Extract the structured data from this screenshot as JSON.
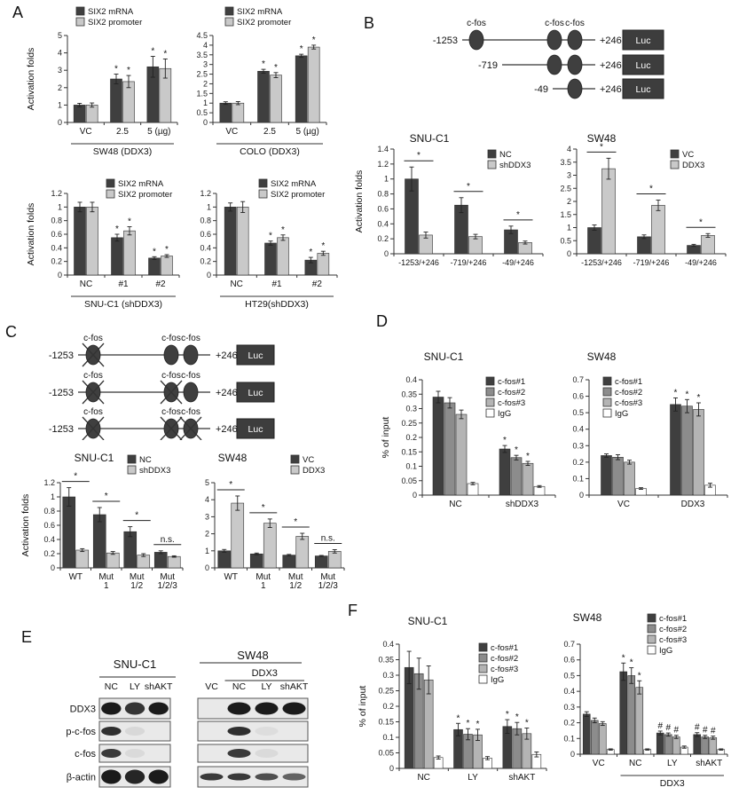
{
  "panel_labels": {
    "a": "A",
    "b": "B",
    "c": "C",
    "d": "D",
    "e": "E",
    "f": "F"
  },
  "colors": {
    "dark": "#3f3f3f",
    "light": "#c9c9c9",
    "mid": "#8c8c8c",
    "lighter": "#b4b4b4",
    "white": "#ffffff"
  },
  "chart_data": {
    "a1": {
      "type": "bar",
      "title": "",
      "ylabel": "Activation folds",
      "ylim": [
        0,
        5
      ],
      "ystep": 1,
      "categories": [
        "VC",
        "2.5",
        "5 (µg)"
      ],
      "series": [
        {
          "name": "SIX2 mRNA",
          "color": "#3f3f3f",
          "values": [
            1.0,
            2.5,
            3.2
          ],
          "errors": [
            0.1,
            0.28,
            0.6
          ]
        },
        {
          "name": "SIX2 promoter",
          "color": "#c9c9c9",
          "values": [
            1.0,
            2.35,
            3.1
          ],
          "errors": [
            0.12,
            0.35,
            0.55
          ]
        }
      ],
      "bar_marks": [
        {
          "c": 1,
          "s": 0,
          "t": "*"
        },
        {
          "c": 1,
          "s": 1,
          "t": "*"
        },
        {
          "c": 2,
          "s": 0,
          "t": "*"
        },
        {
          "c": 2,
          "s": 1,
          "t": "*"
        }
      ],
      "xgroup": {
        "label": "SW48 (DDX3)",
        "span": [
          0,
          2
        ]
      }
    },
    "a2": {
      "type": "bar",
      "title": "",
      "ylim": [
        0,
        4.5
      ],
      "ystep": 0.5,
      "categories": [
        "VC",
        "2.5",
        "5 (µg)"
      ],
      "series": [
        {
          "name": "SIX2 mRNA",
          "color": "#3f3f3f",
          "values": [
            1.0,
            2.65,
            3.45
          ],
          "errors": [
            0.07,
            0.1,
            0.08
          ]
        },
        {
          "name": "SIX2 promoter",
          "color": "#c9c9c9",
          "values": [
            1.0,
            2.45,
            3.9
          ],
          "errors": [
            0.08,
            0.13,
            0.1
          ]
        }
      ],
      "bar_marks": [
        {
          "c": 1,
          "s": 0,
          "t": "*"
        },
        {
          "c": 1,
          "s": 1,
          "t": "*"
        },
        {
          "c": 2,
          "s": 0,
          "t": "*"
        },
        {
          "c": 2,
          "s": 1,
          "t": "*"
        }
      ],
      "xgroup": {
        "label": "COLO (DDX3)",
        "span": [
          0,
          2
        ]
      }
    },
    "a3": {
      "type": "bar",
      "title": "",
      "ylabel": "Activation folds",
      "ylim": [
        0,
        1.2
      ],
      "ystep": 0.2,
      "categories": [
        "NC",
        "#1",
        "#2"
      ],
      "series": [
        {
          "name": "SIX2 mRNA",
          "color": "#3f3f3f",
          "values": [
            1.0,
            0.55,
            0.25
          ],
          "errors": [
            0.07,
            0.05,
            0.02
          ]
        },
        {
          "name": "SIX2 promoter",
          "color": "#c9c9c9",
          "values": [
            1.0,
            0.65,
            0.28
          ],
          "errors": [
            0.07,
            0.06,
            0.02
          ]
        }
      ],
      "bar_marks": [
        {
          "c": 1,
          "s": 0,
          "t": "*"
        },
        {
          "c": 1,
          "s": 1,
          "t": "*"
        },
        {
          "c": 2,
          "s": 0,
          "t": "*"
        },
        {
          "c": 2,
          "s": 1,
          "t": "*"
        }
      ],
      "xgroup": {
        "label": "SNU-C1 (shDDX3)",
        "span": [
          0,
          2
        ]
      }
    },
    "a4": {
      "type": "bar",
      "title": "",
      "ylim": [
        0,
        1.2
      ],
      "ystep": 0.2,
      "categories": [
        "NC",
        "#1",
        "#2"
      ],
      "series": [
        {
          "name": "SIX2 mRNA",
          "color": "#3f3f3f",
          "values": [
            1.0,
            0.47,
            0.22
          ],
          "errors": [
            0.06,
            0.03,
            0.04
          ]
        },
        {
          "name": "SIX2 promoter",
          "color": "#c9c9c9",
          "values": [
            1.0,
            0.55,
            0.32
          ],
          "errors": [
            0.08,
            0.04,
            0.03
          ]
        }
      ],
      "bar_marks": [
        {
          "c": 1,
          "s": 0,
          "t": "*"
        },
        {
          "c": 1,
          "s": 1,
          "t": "*"
        },
        {
          "c": 2,
          "s": 0,
          "t": "*"
        },
        {
          "c": 2,
          "s": 1,
          "t": "*"
        }
      ],
      "xgroup": {
        "label": "HT29(shDDX3)",
        "span": [
          0,
          2
        ]
      }
    },
    "b1": {
      "type": "bar",
      "title": "SNU-C1",
      "ylabel": "Activation folds",
      "ylim": [
        0,
        1.4
      ],
      "ystep": 0.2,
      "categories": [
        "-1253/+246",
        "-719/+246",
        "-49/+246"
      ],
      "series": [
        {
          "name": "NC",
          "color": "#3f3f3f",
          "values": [
            1.0,
            0.65,
            0.32
          ],
          "errors": [
            0.16,
            0.1,
            0.05
          ]
        },
        {
          "name": "shDDX3",
          "color": "#c9c9c9",
          "values": [
            0.25,
            0.23,
            0.15
          ],
          "errors": [
            0.04,
            0.03,
            0.02
          ]
        }
      ],
      "cat_marks": [
        {
          "c": 0,
          "t": "*"
        },
        {
          "c": 1,
          "t": "*"
        },
        {
          "c": 2,
          "t": "*"
        }
      ]
    },
    "b2": {
      "type": "bar",
      "title": "SW48",
      "ylim": [
        0,
        4
      ],
      "ystep": 0.5,
      "categories": [
        "-1253/+246",
        "-719/+246",
        "-49/+246"
      ],
      "series": [
        {
          "name": "VC",
          "color": "#3f3f3f",
          "values": [
            1.0,
            0.65,
            0.32
          ],
          "errors": [
            0.1,
            0.07,
            0.04
          ]
        },
        {
          "name": "DDX3",
          "color": "#c9c9c9",
          "values": [
            3.25,
            1.85,
            0.7
          ],
          "errors": [
            0.4,
            0.2,
            0.07
          ]
        }
      ],
      "cat_marks": [
        {
          "c": 0,
          "t": "*"
        },
        {
          "c": 1,
          "t": "*"
        },
        {
          "c": 2,
          "t": "*"
        }
      ]
    },
    "c1": {
      "type": "bar",
      "title": "SNU-C1",
      "ylabel": "Activation folds",
      "ylim": [
        0,
        1.2
      ],
      "ystep": 0.2,
      "categories": [
        "WT",
        "Mut\n1",
        "Mut\n1/2",
        "Mut\n1/2/3"
      ],
      "series": [
        {
          "name": "NC",
          "color": "#3f3f3f",
          "values": [
            1.0,
            0.75,
            0.51,
            0.22
          ],
          "errors": [
            0.13,
            0.1,
            0.07,
            0.02
          ]
        },
        {
          "name": "shDDX3",
          "color": "#c9c9c9",
          "values": [
            0.25,
            0.21,
            0.18,
            0.16
          ],
          "errors": [
            0.02,
            0.02,
            0.02,
            0.01
          ]
        }
      ],
      "cat_marks": [
        {
          "c": 0,
          "t": "*"
        },
        {
          "c": 1,
          "t": "*"
        },
        {
          "c": 2,
          "t": "*"
        },
        {
          "c": 3,
          "t": "n.s."
        }
      ]
    },
    "c2": {
      "type": "bar",
      "title": "SW48",
      "ylim": [
        0,
        5
      ],
      "ystep": 1,
      "categories": [
        "WT",
        "Mut\n1",
        "Mut\n1/2",
        "Mut\n1/2/3"
      ],
      "series": [
        {
          "name": "VC",
          "color": "#3f3f3f",
          "values": [
            1.0,
            0.82,
            0.75,
            0.7
          ],
          "errors": [
            0.08,
            0.05,
            0.04,
            0.03
          ]
        },
        {
          "name": "DDX3",
          "color": "#c9c9c9",
          "values": [
            3.8,
            2.62,
            1.85,
            0.97
          ],
          "errors": [
            0.42,
            0.25,
            0.18,
            0.1
          ]
        }
      ],
      "cat_marks": [
        {
          "c": 0,
          "t": "*"
        },
        {
          "c": 1,
          "t": "*"
        },
        {
          "c": 2,
          "t": "*"
        },
        {
          "c": 3,
          "t": "n.s."
        }
      ]
    },
    "d1": {
      "type": "bar",
      "title": "SNU-C1",
      "ylabel": "% of input",
      "ylim": [
        0,
        0.4
      ],
      "ystep": 0.05,
      "categories": [
        "NC",
        "shDDX3"
      ],
      "series": [
        {
          "name": "c-fos#1",
          "color": "#3f3f3f",
          "values": [
            0.34,
            0.16
          ],
          "errors": [
            0.02,
            0.012
          ]
        },
        {
          "name": "c-fos#2",
          "color": "#8c8c8c",
          "values": [
            0.32,
            0.13
          ],
          "errors": [
            0.018,
            0.008
          ]
        },
        {
          "name": "c-fos#3",
          "color": "#b4b4b4",
          "values": [
            0.28,
            0.11
          ],
          "errors": [
            0.015,
            0.007
          ]
        },
        {
          "name": "IgG",
          "color": "#ffffff",
          "values": [
            0.04,
            0.03
          ],
          "errors": [
            0.004,
            0.003
          ]
        }
      ],
      "bar_marks": [
        {
          "c": 1,
          "s": 0,
          "t": "*"
        },
        {
          "c": 1,
          "s": 1,
          "t": "*"
        },
        {
          "c": 1,
          "s": 2,
          "t": "*"
        }
      ]
    },
    "d2": {
      "type": "bar",
      "title": "SW48",
      "ylim": [
        0,
        0.7
      ],
      "ystep": 0.1,
      "categories": [
        "VC",
        "DDX3"
      ],
      "series": [
        {
          "name": "c-fos#1",
          "color": "#3f3f3f",
          "values": [
            0.24,
            0.55
          ],
          "errors": [
            0.01,
            0.04
          ]
        },
        {
          "name": "c-fos#2",
          "color": "#8c8c8c",
          "values": [
            0.23,
            0.54
          ],
          "errors": [
            0.015,
            0.04
          ]
        },
        {
          "name": "c-fos#3",
          "color": "#b4b4b4",
          "values": [
            0.2,
            0.52
          ],
          "errors": [
            0.012,
            0.04
          ]
        },
        {
          "name": "IgG",
          "color": "#ffffff",
          "values": [
            0.04,
            0.06
          ],
          "errors": [
            0.005,
            0.012
          ]
        }
      ],
      "bar_marks": [
        {
          "c": 1,
          "s": 0,
          "t": "*"
        },
        {
          "c": 1,
          "s": 1,
          "t": "*"
        },
        {
          "c": 1,
          "s": 2,
          "t": "*"
        }
      ]
    },
    "f1": {
      "type": "bar",
      "title": "SNU-C1",
      "ylabel": "% of input",
      "ylim": [
        0,
        0.4
      ],
      "ystep": 0.05,
      "categories": [
        "NC",
        "LY",
        "shAKT"
      ],
      "series": [
        {
          "name": "c-fos#1",
          "color": "#3f3f3f",
          "values": [
            0.325,
            0.125,
            0.135
          ],
          "errors": [
            0.052,
            0.02,
            0.022
          ]
        },
        {
          "name": "c-fos#2",
          "color": "#8c8c8c",
          "values": [
            0.305,
            0.11,
            0.128
          ],
          "errors": [
            0.05,
            0.018,
            0.02
          ]
        },
        {
          "name": "c-fos#3",
          "color": "#b4b4b4",
          "values": [
            0.285,
            0.108,
            0.112
          ],
          "errors": [
            0.045,
            0.018,
            0.018
          ]
        },
        {
          "name": "IgG",
          "color": "#ffffff",
          "values": [
            0.035,
            0.033,
            0.045
          ],
          "errors": [
            0.005,
            0.005,
            0.008
          ]
        }
      ],
      "bar_marks": [
        {
          "c": 1,
          "s": 0,
          "t": "*"
        },
        {
          "c": 1,
          "s": 1,
          "t": "*"
        },
        {
          "c": 1,
          "s": 2,
          "t": "*"
        },
        {
          "c": 2,
          "s": 0,
          "t": "*"
        },
        {
          "c": 2,
          "s": 1,
          "t": "*"
        },
        {
          "c": 2,
          "s": 2,
          "t": "*"
        }
      ]
    },
    "f2": {
      "type": "bar",
      "title": "SW48",
      "ylim": [
        0,
        0.7
      ],
      "ystep": 0.1,
      "categories": [
        "VC",
        "NC",
        "LY",
        "shAKT"
      ],
      "series": [
        {
          "name": "c-fos#1",
          "color": "#3f3f3f",
          "values": [
            0.255,
            0.525,
            0.135,
            0.125
          ],
          "errors": [
            0.015,
            0.055,
            0.012,
            0.012
          ]
        },
        {
          "name": "c-fos#2",
          "color": "#8c8c8c",
          "values": [
            0.215,
            0.5,
            0.125,
            0.11
          ],
          "errors": [
            0.015,
            0.05,
            0.01,
            0.01
          ]
        },
        {
          "name": "c-fos#3",
          "color": "#b4b4b4",
          "values": [
            0.195,
            0.425,
            0.11,
            0.105
          ],
          "errors": [
            0.012,
            0.042,
            0.01,
            0.01
          ]
        },
        {
          "name": "IgG",
          "color": "#ffffff",
          "values": [
            0.03,
            0.03,
            0.045,
            0.03
          ],
          "errors": [
            0.004,
            0.004,
            0.007,
            0.004
          ]
        }
      ],
      "bar_marks": [
        {
          "c": 1,
          "s": 0,
          "t": "*"
        },
        {
          "c": 1,
          "s": 1,
          "t": "*"
        },
        {
          "c": 1,
          "s": 2,
          "t": "*"
        },
        {
          "c": 2,
          "s": 0,
          "t": "#"
        },
        {
          "c": 2,
          "s": 1,
          "t": "#"
        },
        {
          "c": 2,
          "s": 2,
          "t": "#"
        },
        {
          "c": 3,
          "s": 0,
          "t": "#"
        },
        {
          "c": 3,
          "s": 1,
          "t": "#"
        },
        {
          "c": 3,
          "s": 2,
          "t": "#"
        }
      ],
      "xgroup": {
        "label": "DDX3",
        "span": [
          1,
          3
        ]
      }
    }
  },
  "schematics": {
    "b": {
      "rows": [
        {
          "start": "-1253",
          "end": "+246",
          "luc": "Luc",
          "sites": [
            {
              "slot": 0,
              "label": "c-fos",
              "crossed": false
            },
            {
              "slot": 1,
              "label": "c-fos",
              "crossed": false
            },
            {
              "slot": 2,
              "label": "c-fos",
              "crossed": false
            }
          ]
        },
        {
          "start": "-719",
          "end": "+246",
          "luc": "Luc",
          "sites": [
            {
              "slot": 1,
              "label": "",
              "crossed": false
            },
            {
              "slot": 2,
              "label": "",
              "crossed": false
            }
          ]
        },
        {
          "start": "-49",
          "end": "+246",
          "luc": "Luc",
          "sites": [
            {
              "slot": 2,
              "label": "",
              "crossed": false
            }
          ]
        }
      ]
    },
    "c": {
      "rows": [
        {
          "start": "-1253",
          "end": "+246",
          "luc": "Luc",
          "sites": [
            {
              "slot": 0,
              "label": "c-fos",
              "crossed": true
            },
            {
              "slot": 1,
              "label": "c-fos",
              "crossed": false
            },
            {
              "slot": 2,
              "label": "c-fos",
              "crossed": false
            }
          ]
        },
        {
          "start": "-1253",
          "end": "+246",
          "luc": "Luc",
          "sites": [
            {
              "slot": 0,
              "label": "c-fos",
              "crossed": true
            },
            {
              "slot": 1,
              "label": "c-fos",
              "crossed": true
            },
            {
              "slot": 2,
              "label": "c-fos",
              "crossed": false
            }
          ]
        },
        {
          "start": "-1253",
          "end": "+246",
          "luc": "Luc",
          "sites": [
            {
              "slot": 0,
              "label": "c-fos",
              "crossed": true
            },
            {
              "slot": 1,
              "label": "c-fos",
              "crossed": true
            },
            {
              "slot": 2,
              "label": "c-fos",
              "crossed": true
            }
          ]
        }
      ]
    }
  },
  "blots": {
    "row_labels": [
      "DDX3",
      "p-c-fos",
      "c-fos",
      "β-actin"
    ],
    "groups": [
      {
        "title": "SNU-C1",
        "lanes": [
          "NC",
          "LY",
          "shAKT"
        ],
        "rows": [
          [
            1,
            0.88,
            1
          ],
          [
            0.9,
            0.08,
            0
          ],
          [
            0.85,
            0.07,
            0
          ],
          [
            1,
            0.95,
            1
          ]
        ]
      },
      {
        "title": "SW48",
        "sub": {
          "label": "DDX3",
          "from": 1,
          "to": 3
        },
        "lanes": [
          "VC",
          "NC",
          "LY",
          "shAKT"
        ],
        "rows": [
          [
            0,
            1,
            1,
            1
          ],
          [
            0,
            0.9,
            0.06,
            0
          ],
          [
            0,
            0.85,
            0.07,
            0
          ],
          [
            0.85,
            0.85,
            0.75,
            0.65
          ]
        ]
      }
    ]
  }
}
